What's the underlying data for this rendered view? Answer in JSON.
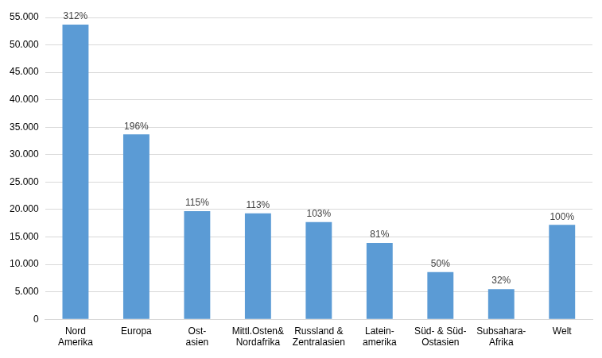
{
  "chart_data": {
    "type": "bar",
    "categories": [
      [
        "Nord",
        "Amerika"
      ],
      "Europa",
      [
        "Ost-",
        "asien"
      ],
      [
        "Mittl.Osten&",
        "Nordafrika"
      ],
      [
        "Russland &",
        "Zentralasien"
      ],
      [
        "Latein-",
        "amerika"
      ],
      [
        "Süd- & Süd-",
        "Ostasien"
      ],
      [
        "Subsahara-",
        "Afrika"
      ],
      "Welt"
    ],
    "values": [
      53700,
      33700,
      19700,
      19300,
      17700,
      13900,
      8600,
      5500,
      17200
    ],
    "annotations": [
      "312%",
      "196%",
      "115%",
      "113%",
      "103%",
      "81%",
      "50%",
      "32%",
      "100%"
    ],
    "color": "#5b9bd5",
    "ylim": [
      0,
      55000
    ],
    "yticks": [
      0,
      {
        "value": 5000,
        "label": "5.000"
      },
      {
        "value": 10000,
        "label": "10.000"
      },
      {
        "value": 15000,
        "label": "15.000"
      },
      {
        "value": 20000,
        "label": "20.000"
      },
      {
        "value": 25000,
        "label": "25.000"
      },
      {
        "value": 30000,
        "label": "30.000"
      },
      {
        "value": 35000,
        "label": "35.000"
      },
      {
        "value": 40000,
        "label": "40.000"
      },
      {
        "value": 45000,
        "label": "45.000"
      },
      {
        "value": 50000,
        "label": "50.000"
      },
      {
        "value": 55000,
        "label": "55.000"
      }
    ],
    "grid": true
  }
}
